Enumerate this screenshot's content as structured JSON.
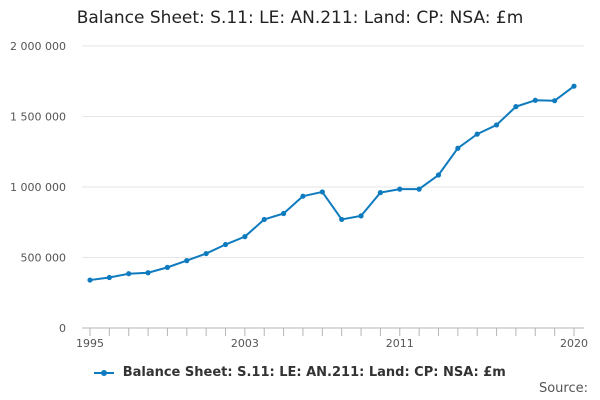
{
  "chart_data": {
    "type": "line",
    "title": "Balance Sheet: S.11: LE: AN.211: Land: CP: NSA: £m",
    "x": [
      1995,
      1996,
      1997,
      1998,
      1999,
      2000,
      2001,
      2002,
      2003,
      2004,
      2005,
      2006,
      2007,
      2008,
      2009,
      2010,
      2011,
      2012,
      2013,
      2014,
      2015,
      2016,
      2017,
      2018,
      2019,
      2020
    ],
    "series": [
      {
        "name": "Balance Sheet: S.11: LE: AN.211: Land: CP: NSA: £m",
        "color": "#0e7bbf",
        "values": [
          340000,
          358000,
          385000,
          392000,
          430000,
          478000,
          528000,
          592000,
          648000,
          770000,
          812000,
          935000,
          965000,
          770000,
          795000,
          960000,
          985000,
          985000,
          1085000,
          1275000,
          1375000,
          1440000,
          1570000,
          1615000,
          1612000,
          1715000
        ]
      }
    ],
    "xticks": [
      1995,
      2003,
      2011,
      2020
    ],
    "xtick_labels": [
      "1995",
      "2003",
      "2011",
      "2020"
    ],
    "yticks": [
      0,
      500000,
      1000000,
      1500000,
      2000000
    ],
    "ytick_labels": [
      "0",
      "500 000",
      "1 000 000",
      "1 500 000",
      "2 000 000"
    ],
    "xlim": [
      1995,
      2020
    ],
    "ylim": [
      0,
      2000000
    ],
    "grid": true,
    "legend_position": "bottom-center"
  },
  "source_label": "Source:"
}
